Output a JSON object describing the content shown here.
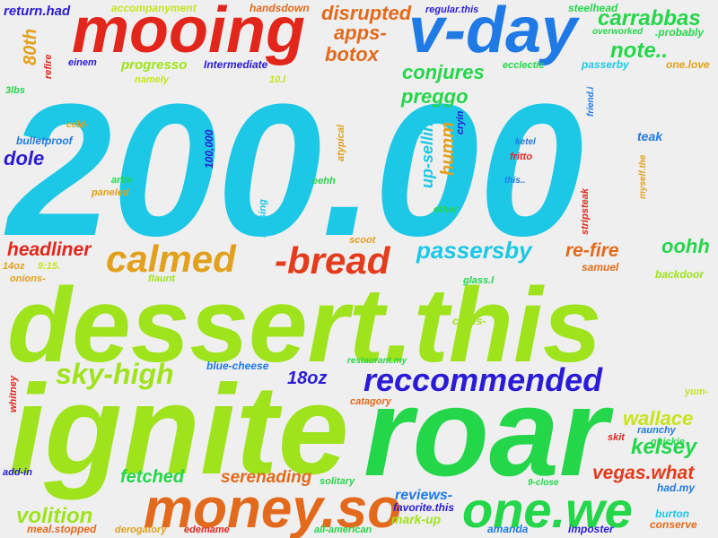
{
  "words": [
    {
      "text": "200.00",
      "color": "#1cc8e6"
    },
    {
      "text": "dessert.this",
      "color": "#9ee31c"
    },
    {
      "text": "ignite",
      "color": "#9ee31c"
    },
    {
      "text": "roar",
      "color": "#24d64a"
    },
    {
      "text": "mooing",
      "color": "#e3261c"
    },
    {
      "text": "v-day",
      "color": "#1f7ae6"
    },
    {
      "text": "money.so",
      "color": "#e36a1c"
    },
    {
      "text": "one.we",
      "color": "#24d64a"
    },
    {
      "text": "reccommended",
      "color": "#2a1cd6"
    },
    {
      "text": "-bread",
      "color": "#e33b1c"
    },
    {
      "text": "calmed",
      "color": "#e3a01c"
    },
    {
      "text": "sky-high",
      "color": "#9ee31c"
    },
    {
      "text": "passersby",
      "color": "#1cc8e6"
    },
    {
      "text": "disrupted",
      "color": "#e36a1c"
    },
    {
      "text": "carrabbas",
      "color": "#24d64a"
    },
    {
      "text": "note..",
      "color": "#24d64a"
    },
    {
      "text": "apps-",
      "color": "#e36a1c"
    },
    {
      "text": "botox",
      "color": "#e36a1c"
    },
    {
      "text": "conjures",
      "color": "#24d64a"
    },
    {
      "text": "preggo",
      "color": "#24d64a"
    },
    {
      "text": "headliner",
      "color": "#e3261c"
    },
    {
      "text": "volition",
      "color": "#9ee31c"
    },
    {
      "text": "fetched",
      "color": "#24d64a"
    },
    {
      "text": "serenading",
      "color": "#e36a1c"
    },
    {
      "text": "wallace",
      "color": "#c8e31c"
    },
    {
      "text": "kelsey",
      "color": "#24d64a"
    },
    {
      "text": "vegas.what",
      "color": "#e33b1c"
    },
    {
      "text": "re-fire",
      "color": "#e36a1c"
    },
    {
      "text": "oohh",
      "color": "#24d64a"
    },
    {
      "text": "dole",
      "color": "#2a1cd6"
    },
    {
      "text": "18oz",
      "color": "#2a1cd6"
    },
    {
      "text": "humm",
      "color": "#e3a01c"
    },
    {
      "text": "up-selling",
      "color": "#1cc8e6"
    },
    {
      "text": "progresso",
      "color": "#9ee31c"
    },
    {
      "text": "80th",
      "color": "#e3a01c"
    },
    {
      "text": "return.had",
      "color": "#2a1cd6"
    },
    {
      "text": "accompanyment",
      "color": "#c8e31c"
    },
    {
      "text": "handsdown",
      "color": "#e36a1c"
    },
    {
      "text": "regular.this",
      "color": "#2a1cd6"
    },
    {
      "text": "steelhead",
      "color": "#24d64a"
    },
    {
      "text": "overworked",
      "color": "#24d64a"
    },
    {
      "text": ".probably",
      "color": "#24d64a"
    },
    {
      "text": "Intermediate",
      "color": "#2a1cd6"
    },
    {
      "text": "einem",
      "color": "#2a1cd6"
    },
    {
      "text": "refire",
      "color": "#e3261c"
    },
    {
      "text": "namely",
      "color": "#c8e31c"
    },
    {
      "text": "10.l",
      "color": "#c8e31c"
    },
    {
      "text": "ecclectic",
      "color": "#24d64a"
    },
    {
      "text": "passerby",
      "color": "#1cc8e6"
    },
    {
      "text": "one.love",
      "color": "#e3a01c"
    },
    {
      "text": "3lbs",
      "color": "#24d64a"
    },
    {
      "text": "friend.i",
      "color": "#1f7ae6"
    },
    {
      "text": "teak",
      "color": "#1f7ae6"
    },
    {
      "text": "cold-",
      "color": "#e3a01c"
    },
    {
      "text": "bulletproof",
      "color": "#1f7ae6"
    },
    {
      "text": "cryin",
      "color": "#2a1cd6"
    },
    {
      "text": "ketel",
      "color": "#1f7ae6"
    },
    {
      "text": "fritto",
      "color": "#e3261c"
    },
    {
      "text": "100,000",
      "color": "#2a1cd6"
    },
    {
      "text": "atypical",
      "color": "#e3a01c"
    },
    {
      "text": "artie",
      "color": "#24d64a"
    },
    {
      "text": "paneled",
      "color": "#e3a01c"
    },
    {
      "text": "eehh",
      "color": "#24d64a"
    },
    {
      "text": "this..",
      "color": "#1f7ae6"
    },
    {
      "text": "stripsteak",
      "color": "#e3261c"
    },
    {
      "text": "myself.the",
      "color": "#e3a01c"
    },
    {
      "text": "braising",
      "color": "#1cc8e6"
    },
    {
      "text": "ether",
      "color": "#24d64a"
    },
    {
      "text": "scoot",
      "color": "#e3a01c"
    },
    {
      "text": "14oz",
      "color": "#e3a01c"
    },
    {
      "text": "9:15.",
      "color": "#c8e31c"
    },
    {
      "text": "onions-",
      "color": "#e3a01c"
    },
    {
      "text": "flaunt",
      "color": "#9ee31c"
    },
    {
      "text": "samuel",
      "color": "#e36a1c"
    },
    {
      "text": "backdoor",
      "color": "#9ee31c"
    },
    {
      "text": "glass.l",
      "color": "#24d64a"
    },
    {
      "text": "cakes-",
      "color": "#9ee31c"
    },
    {
      "text": "blue-cheese",
      "color": "#1f7ae6"
    },
    {
      "text": "restaurant.my",
      "color": "#24d64a"
    },
    {
      "text": "whitney",
      "color": "#e3261c"
    },
    {
      "text": "catagory",
      "color": "#e36a1c"
    },
    {
      "text": "yum-",
      "color": "#c8e31c"
    },
    {
      "text": "raunchy",
      "color": "#1f7ae6"
    },
    {
      "text": "quickie",
      "color": "#24d64a"
    },
    {
      "text": "skit",
      "color": "#e3261c"
    },
    {
      "text": "add-in",
      "color": "#2a1cd6"
    },
    {
      "text": "solitary",
      "color": "#24d64a"
    },
    {
      "text": "reviews-",
      "color": "#1f7ae6"
    },
    {
      "text": "favorite.this",
      "color": "#2a1cd6"
    },
    {
      "text": "9-close",
      "color": "#24d64a"
    },
    {
      "text": "had.my",
      "color": "#1f7ae6"
    },
    {
      "text": "mark-up",
      "color": "#9ee31c"
    },
    {
      "text": "burton",
      "color": "#1cc8e6"
    },
    {
      "text": "conserve",
      "color": "#e36a1c"
    },
    {
      "text": "meal.stopped",
      "color": "#e36a1c"
    },
    {
      "text": "derogatory",
      "color": "#e3a01c"
    },
    {
      "text": "edemame",
      "color": "#e3261c"
    },
    {
      "text": "all-american",
      "color": "#24d64a"
    },
    {
      "text": "amanda",
      "color": "#1f7ae6"
    },
    {
      "text": "imposter",
      "color": "#2a1cd6"
    }
  ]
}
